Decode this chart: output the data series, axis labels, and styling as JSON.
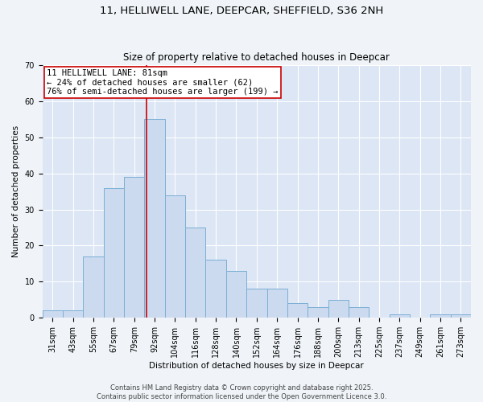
{
  "title_line1": "11, HELLIWELL LANE, DEEPCAR, SHEFFIELD, S36 2NH",
  "title_line2": "Size of property relative to detached houses in Deepcar",
  "xlabel": "Distribution of detached houses by size in Deepcar",
  "ylabel": "Number of detached properties",
  "bar_labels": [
    "31sqm",
    "43sqm",
    "55sqm",
    "67sqm",
    "79sqm",
    "92sqm",
    "104sqm",
    "116sqm",
    "128sqm",
    "140sqm",
    "152sqm",
    "164sqm",
    "176sqm",
    "188sqm",
    "200sqm",
    "213sqm",
    "225sqm",
    "237sqm",
    "249sqm",
    "261sqm",
    "273sqm"
  ],
  "bar_values": [
    2,
    2,
    17,
    36,
    39,
    55,
    34,
    25,
    16,
    13,
    8,
    8,
    4,
    3,
    5,
    3,
    0,
    1,
    0,
    1,
    1
  ],
  "bar_color": "#ccdaf0",
  "bar_edge_color": "#7bafd4",
  "plot_bg_color": "#dce6f5",
  "fig_bg_color": "#f0f4f8",
  "grid_color": "#ffffff",
  "property_label": "11 HELLIWELL LANE: 81sqm",
  "annotation_line2": "← 24% of detached houses are smaller (62)",
  "annotation_line3": "76% of semi-detached houses are larger (199) →",
  "vline_color": "#cc0000",
  "vline_x_bin": 4.62,
  "ylim": [
    0,
    70
  ],
  "yticks": [
    0,
    10,
    20,
    30,
    40,
    50,
    60,
    70
  ],
  "footer_line1": "Contains HM Land Registry data © Crown copyright and database right 2025.",
  "footer_line2": "Contains public sector information licensed under the Open Government Licence 3.0.",
  "footer_fontsize": 6.0,
  "title1_fontsize": 9.5,
  "title2_fontsize": 8.5,
  "axis_label_fontsize": 7.5,
  "tick_fontsize": 7.0,
  "annot_fontsize": 7.5
}
